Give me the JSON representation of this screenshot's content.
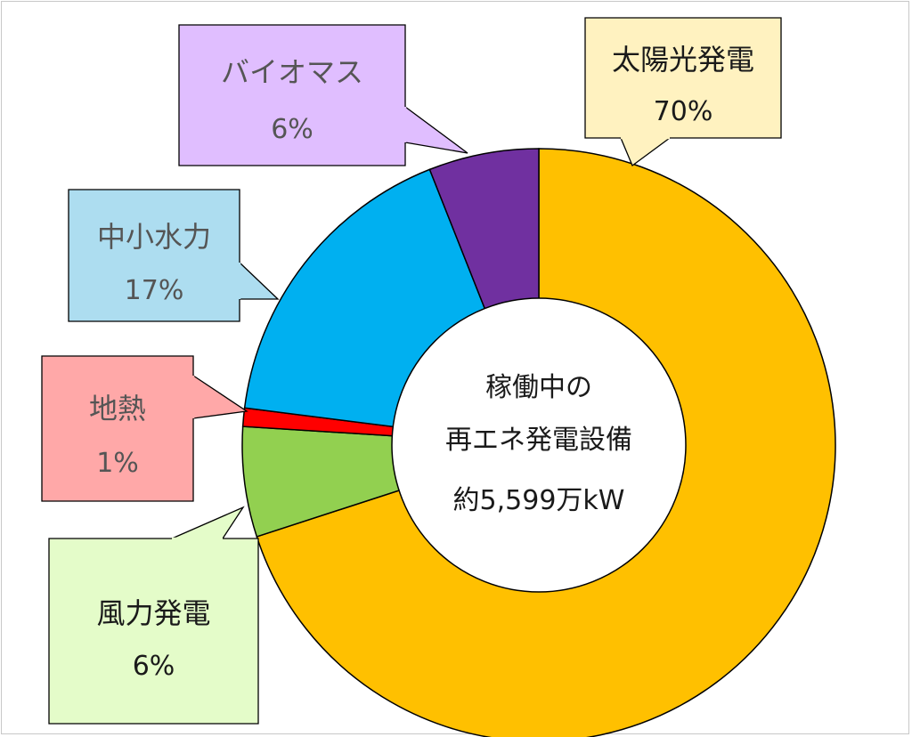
{
  "chart_data": {
    "type": "donut",
    "center_label": [
      "稼働中の",
      "再エネ発電設備",
      "約5,599万kW"
    ],
    "slices": [
      {
        "name": "太陽光発電",
        "value": 70,
        "label": "70%",
        "color": "#FFC000",
        "box_color": "#FFF2C0",
        "text_color": "#1a1a1a"
      },
      {
        "name": "風力発電",
        "value": 6,
        "label": "6%",
        "color": "#92D050",
        "box_color": "#E4FCC9",
        "text_color": "#1a1a1a"
      },
      {
        "name": "地熱",
        "value": 1,
        "label": "1%",
        "color": "#FF0000",
        "box_color": "#FFA8A8",
        "text_color": "#555555"
      },
      {
        "name": "中小水力",
        "value": 17,
        "label": "17%",
        "color": "#00B0F0",
        "box_color": "#ADDDF0",
        "text_color": "#555555"
      },
      {
        "name": "バイオマス",
        "value": 6,
        "label": "6%",
        "color": "#7030A0",
        "box_color": "#E0BEFF",
        "text_color": "#555555"
      }
    ]
  }
}
